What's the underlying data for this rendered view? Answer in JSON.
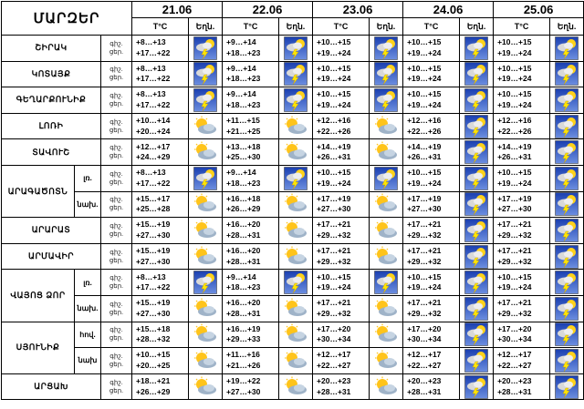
{
  "header": {
    "region_title": "ՄԱՐԶԵՐ",
    "temp_label": "T°C",
    "weather_label": "Եղն.",
    "dates": [
      "21.06",
      "22.06",
      "23.06",
      "24.06",
      "25.06"
    ]
  },
  "row_labels": {
    "night": "գիշ.",
    "day": "ցեր."
  },
  "rows": [
    {
      "region": "ՇԻՐԱԿ",
      "sub": "",
      "days": [
        {
          "night": "+8…+13",
          "day": "+17…+22",
          "icon": "thunderstorm"
        },
        {
          "night": "+9…+14",
          "day": "+18…+23",
          "icon": "thunderstorm"
        },
        {
          "night": "+10…+15",
          "day": "+19…+24",
          "icon": "thunderstorm"
        },
        {
          "night": "+10…+15",
          "day": "+19…+24",
          "icon": "thunderstorm"
        },
        {
          "night": "+10…+15",
          "day": "+19…+24",
          "icon": "thunderstorm"
        }
      ]
    },
    {
      "region": "ԿՈՏԱՅՔ",
      "sub": "",
      "days": [
        {
          "night": "+8…+13",
          "day": "+17…+22",
          "icon": "thunderstorm"
        },
        {
          "night": "+9…+14",
          "day": "+18…+23",
          "icon": "thunderstorm"
        },
        {
          "night": "+10…+15",
          "day": "+19…+24",
          "icon": "thunderstorm"
        },
        {
          "night": "+10…+15",
          "day": "+19…+24",
          "icon": "thunderstorm"
        },
        {
          "night": "+10…+15",
          "day": "+19…+24",
          "icon": "thunderstorm"
        }
      ]
    },
    {
      "region": "ԳԵՂԱՐՔՈՒՆԻՔ",
      "sub": "",
      "days": [
        {
          "night": "+8…+13",
          "day": "+17…+22",
          "icon": "thunderstorm"
        },
        {
          "night": "+9…+14",
          "day": "+18…+23",
          "icon": "thunderstorm"
        },
        {
          "night": "+10…+15",
          "day": "+19…+24",
          "icon": "thunderstorm"
        },
        {
          "night": "+10…+15",
          "day": "+19…+24",
          "icon": "thunderstorm"
        },
        {
          "night": "+10…+15",
          "day": "+19…+24",
          "icon": "thunderstorm"
        }
      ]
    },
    {
      "region": "ԼՈՌԻ",
      "sub": "",
      "days": [
        {
          "night": "+10…+14",
          "day": "+20…+24",
          "icon": "partly-cloudy"
        },
        {
          "night": "+11…+15",
          "day": "+21…+25",
          "icon": "partly-cloudy"
        },
        {
          "night": "+12…+16",
          "day": "+22…+26",
          "icon": "partly-cloudy"
        },
        {
          "night": "+12…+16",
          "day": "+22…+26",
          "icon": "thunderstorm"
        },
        {
          "night": "+12…+16",
          "day": "+22…+26",
          "icon": "thunderstorm"
        }
      ]
    },
    {
      "region": "ՏԱՎՈՒՇ",
      "sub": "",
      "days": [
        {
          "night": "+12…+17",
          "day": "+24…+29",
          "icon": "partly-cloudy"
        },
        {
          "night": "+13…+18",
          "day": "+25…+30",
          "icon": "partly-cloudy"
        },
        {
          "night": "+14…+19",
          "day": "+26…+31",
          "icon": "partly-cloudy"
        },
        {
          "night": "+14…+19",
          "day": "+26…+31",
          "icon": "thunderstorm"
        },
        {
          "night": "+14…+19",
          "day": "+26…+31",
          "icon": "thunderstorm"
        }
      ]
    },
    {
      "region": "ԱՐԱԳԱԾՈՏՆ",
      "sub": "լռ.",
      "days": [
        {
          "night": "+8…+13",
          "day": "+17…+22",
          "icon": "thunderstorm"
        },
        {
          "night": "+9…+14",
          "day": "+18…+23",
          "icon": "thunderstorm"
        },
        {
          "night": "+10…+15",
          "day": "+19…+24",
          "icon": "thunderstorm"
        },
        {
          "night": "+10…+15",
          "day": "+19…+24",
          "icon": "thunderstorm"
        },
        {
          "night": "+10…+15",
          "day": "+19…+24",
          "icon": "thunderstorm"
        }
      ]
    },
    {
      "region": "",
      "sub": "նախ.",
      "days": [
        {
          "night": "+15…+17",
          "day": "+25…+28",
          "icon": "partly-cloudy"
        },
        {
          "night": "+16…+18",
          "day": "+26…+29",
          "icon": "partly-cloudy"
        },
        {
          "night": "+17…+19",
          "day": "+27…+30",
          "icon": "partly-cloudy"
        },
        {
          "night": "+17…+19",
          "day": "+27…+30",
          "icon": "thunderstorm"
        },
        {
          "night": "+17…+19",
          "day": "+27…+30",
          "icon": "thunderstorm"
        }
      ]
    },
    {
      "region": "ԱՐԱՐԱՏ",
      "sub": "",
      "days": [
        {
          "night": "+15…+19",
          "day": "+27…+30",
          "icon": "partly-cloudy"
        },
        {
          "night": "+16…+20",
          "day": "+28…+31",
          "icon": "partly-cloudy"
        },
        {
          "night": "+17…+21",
          "day": "+29…+32",
          "icon": "partly-cloudy"
        },
        {
          "night": "+17…+21",
          "day": "+29…+32",
          "icon": "thunderstorm"
        },
        {
          "night": "+17…+21",
          "day": "+29…+32",
          "icon": "thunderstorm"
        }
      ]
    },
    {
      "region": "ԱՐՄԱՎԻՐ",
      "sub": "",
      "days": [
        {
          "night": "+15…+19",
          "day": "+27…+30",
          "icon": "partly-cloudy"
        },
        {
          "night": "+16…+20",
          "day": "+28…+31",
          "icon": "partly-cloudy"
        },
        {
          "night": "+17…+21",
          "day": "+29…+32",
          "icon": "partly-cloudy"
        },
        {
          "night": "+17…+21",
          "day": "+29…+32",
          "icon": "thunderstorm"
        },
        {
          "night": "+17…+21",
          "day": "+29…+32",
          "icon": "thunderstorm"
        }
      ]
    },
    {
      "region": "ՎԱՅՈՑ ՁՈՐ",
      "sub": "լռ.",
      "days": [
        {
          "night": "+8…+13",
          "day": "+17…+22",
          "icon": "thunderstorm"
        },
        {
          "night": "+9…+14",
          "day": "+18…+23",
          "icon": "thunderstorm"
        },
        {
          "night": "+10…+15",
          "day": "+19…+24",
          "icon": "thunderstorm"
        },
        {
          "night": "+10…+15",
          "day": "+19…+24",
          "icon": "thunderstorm"
        },
        {
          "night": "+10…+15",
          "day": "+19…+24",
          "icon": "thunderstorm"
        }
      ]
    },
    {
      "region": "",
      "sub": "նախ.",
      "days": [
        {
          "night": "+15…+19",
          "day": "+27…+30",
          "icon": "partly-cloudy"
        },
        {
          "night": "+16…+20",
          "day": "+28…+31",
          "icon": "partly-cloudy"
        },
        {
          "night": "+17…+21",
          "day": "+29…+32",
          "icon": "partly-cloudy"
        },
        {
          "night": "+17…+21",
          "day": "+29…+32",
          "icon": "thunderstorm"
        },
        {
          "night": "+17…+21",
          "day": "+29…+32",
          "icon": "thunderstorm"
        }
      ]
    },
    {
      "region": "ՍՅՈՒՆԻՔ",
      "sub": "հով.",
      "days": [
        {
          "night": "+15…+18",
          "day": "+28…+32",
          "icon": "partly-cloudy"
        },
        {
          "night": "+16…+19",
          "day": "+29…+33",
          "icon": "partly-cloudy"
        },
        {
          "night": "+17…+20",
          "day": "+30…+34",
          "icon": "partly-cloudy"
        },
        {
          "night": "+17…+20",
          "day": "+30…+34",
          "icon": "thunderstorm"
        },
        {
          "night": "+17…+20",
          "day": "+30…+34",
          "icon": "thunderstorm"
        }
      ]
    },
    {
      "region": "",
      "sub": "նախ",
      "days": [
        {
          "night": "+10…+15",
          "day": "+20…+25",
          "icon": "partly-cloudy"
        },
        {
          "night": "+11…+16",
          "day": "+21…+26",
          "icon": "partly-cloudy"
        },
        {
          "night": "+12…+17",
          "day": "+22…+27",
          "icon": "partly-cloudy"
        },
        {
          "night": "+12…+17",
          "day": "+22…+27",
          "icon": "thunderstorm"
        },
        {
          "night": "+12…+17",
          "day": "+22…+27",
          "icon": "thunderstorm"
        }
      ]
    },
    {
      "region": "ԱՐՑԱԽ",
      "sub": "",
      "days": [
        {
          "night": "+18…+21",
          "day": "+26…+29",
          "icon": "partly-cloudy"
        },
        {
          "night": "+19…+22",
          "day": "+27…+30",
          "icon": "partly-cloudy"
        },
        {
          "night": "+20…+23",
          "day": "+28…+31",
          "icon": "partly-cloudy"
        },
        {
          "night": "+20…+23",
          "day": "+28…+31",
          "icon": "thunderstorm"
        },
        {
          "night": "+20…+23",
          "day": "+28…+31",
          "icon": "thunderstorm"
        }
      ]
    }
  ]
}
